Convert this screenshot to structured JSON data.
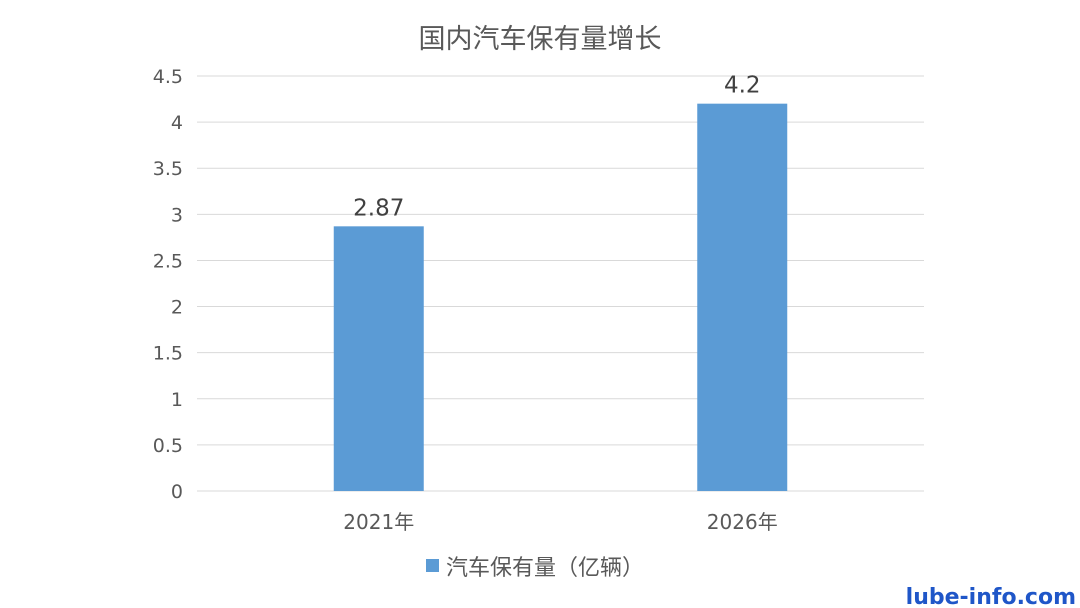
{
  "chart_data": {
    "type": "bar",
    "title": "国内汽车保有量增长",
    "categories": [
      "2021年",
      "2026年"
    ],
    "series": [
      {
        "name": "汽车保有量（亿辆）",
        "values": [
          2.87,
          4.2
        ],
        "data_labels": [
          "2.87",
          "4.2"
        ],
        "color": "#5b9bd5"
      }
    ],
    "ylim": [
      0,
      4.5
    ],
    "yticks": [
      "0",
      "0.5",
      "1",
      "1.5",
      "2",
      "2.5",
      "3",
      "3.5",
      "4",
      "4.5"
    ],
    "grid": true,
    "legend": "bottom",
    "gridline_color": "#d9d9d9"
  },
  "watermark": "lube-info.com"
}
